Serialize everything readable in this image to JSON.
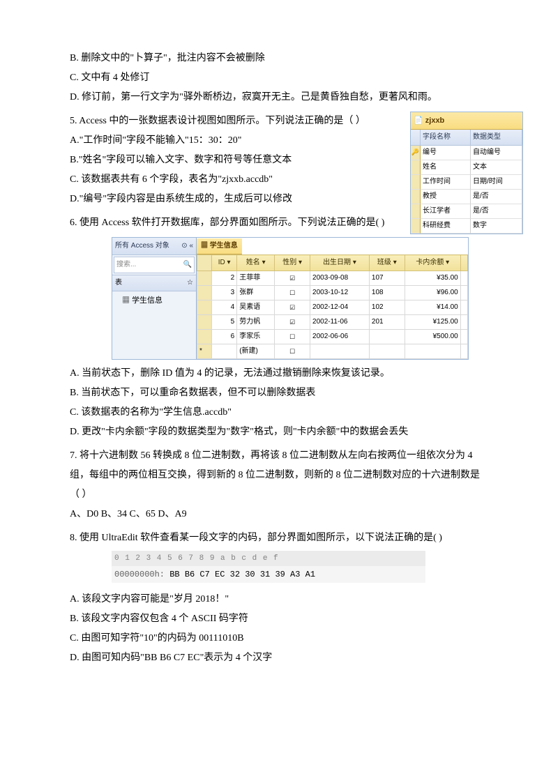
{
  "opts_top": {
    "B": "B.  删除文中的\"卜算子\"，批注内容不会被删除",
    "C": "C.  文中有 4 处修订",
    "D": "D.  修订前，第一行文字为\"驿外断桥边，寂寞开无主。己是黄昏独自愁，更著风和雨。"
  },
  "q5": {
    "stem": "5. Access  中的一张数据表设计视图如图所示。下列说法正确的是（    ）",
    "A": "A.\"工作时间\"字段不能输入\"15：30：20\"",
    "B": "B.\"姓名\"字段可以输入文字、数字和符号等任意文本",
    "C": "C.  该数据表共有 6 个字段，表名为\"zjxxb.accdb\"",
    "D": "D.\"编号\"字段内容是由系统生成的，生成后可以修改",
    "table": {
      "title": "zjxxb",
      "h1": "字段名称",
      "h2": "数据类型",
      "rows": [
        [
          "编号",
          "自动编号"
        ],
        [
          "姓名",
          "文本"
        ],
        [
          "工作时间",
          "日期/时间"
        ],
        [
          "教授",
          "是/否"
        ],
        [
          "长江学者",
          "是/否"
        ],
        [
          "科研经费",
          "数字"
        ]
      ]
    }
  },
  "q6": {
    "stem": "6.  使用  Access  软件打开数据库，部分界面如图所示。下列说法正确的是(       )",
    "nav_title": "所有 Access 对象",
    "search": "搜索...",
    "grp": "表",
    "item": "学生信息",
    "tab": "学生信息",
    "headers": [
      "",
      "ID",
      "姓名",
      "性别",
      "出生日期",
      "班级",
      "卡内余额",
      ""
    ],
    "rows": [
      [
        "",
        "2",
        "王菲菲",
        "☑",
        "2003-09-08",
        "107",
        "¥35.00",
        ""
      ],
      [
        "",
        "3",
        "张群",
        "☐",
        "2003-10-12",
        "108",
        "¥96.00",
        ""
      ],
      [
        "",
        "4",
        "吴素语",
        "☑",
        "2002-12-04",
        "102",
        "¥14.00",
        ""
      ],
      [
        "",
        "5",
        "劳力帆",
        "☑",
        "2002-11-06",
        "201",
        "¥125.00",
        ""
      ],
      [
        "",
        "6",
        "李家乐",
        "☐",
        "2002-06-06",
        "",
        "¥500.00",
        ""
      ],
      [
        "*",
        "",
        "(新建)",
        "☐",
        "",
        "",
        "",
        ""
      ]
    ],
    "A": "A.  当前状态下，删除 ID 值为 4 的记录，无法通过撤销删除来恢复该记录。",
    "B": "B.  当前状态下，可以重命名数据表，但不可以删除数据表",
    "C": "C.  该数据表的名称为\"学生信息.accdb\"",
    "D": "D.  更改\"卡内余额\"字段的数据类型为\"数字\"格式，则\"卡内余额\"中的数据会丢失"
  },
  "q7": {
    "stem": "7.  将十六进制数 56 转换成 8 位二进制数，再将该 8 位二进制数从左向右按两位一组依次分为 4 组，每组中的两位相互交换，得到新的 8 位二进制数，则新的 8 位二进制数对应的十六进制数是（       ）",
    "opts": "A、D0              B、34              C、65              D、A9"
  },
  "q8": {
    "stem": "8.  使用 UltraEdit 软件查看某一段文字的内码，部分界面如图所示，以下说法正确的是(         )",
    "hex_header": "           0  1  2  3  4  5  6  7  8  9  a  b  c  d  e  f",
    "hex_addr": "00000000h:",
    "hex_bytes": " BB B6 C7 EC 32 30 31 39 A3 A1",
    "A": "A.   该段文字内容可能是\"岁月 2018！\"",
    "B": "B.   该段文字内容仅包含 4 个 ASCII 码字符",
    "C": "C.   由图可知字符\"10\"的内码为 00111010B",
    "D": "D.   由图可知内码\"BB B6 C7 EC\"表示为 4 个汉字"
  }
}
